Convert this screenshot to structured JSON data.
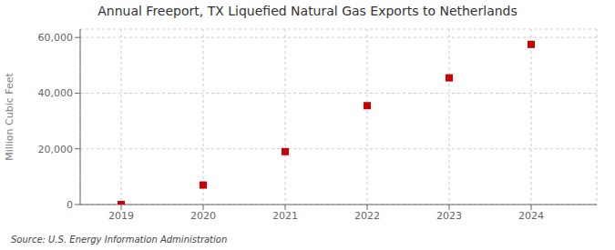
{
  "chart_data": {
    "type": "scatter",
    "title": "Annual Freeport, TX Liquefied Natural Gas Exports to Netherlands",
    "ylabel": "Million Cubic Feet",
    "annotations": [
      "Source: U.S. Energy Information Administration"
    ],
    "x": [
      2019,
      2020,
      2021,
      2022,
      2023,
      2024
    ],
    "values": [
      0,
      7000,
      19000,
      35500,
      45500,
      57500
    ],
    "color": "#cc0000",
    "marker": "square",
    "xlim": [
      2018.5,
      2024.8
    ],
    "ylim": [
      0,
      63000
    ],
    "xticks": [
      2019,
      2020,
      2021,
      2022,
      2023,
      2024
    ],
    "yticks": [
      0,
      {
        "value": 20000,
        "label": "20,000"
      },
      {
        "value": 40000,
        "label": "40,000"
      },
      {
        "value": 60000,
        "label": "60,000"
      }
    ],
    "grid": true
  }
}
